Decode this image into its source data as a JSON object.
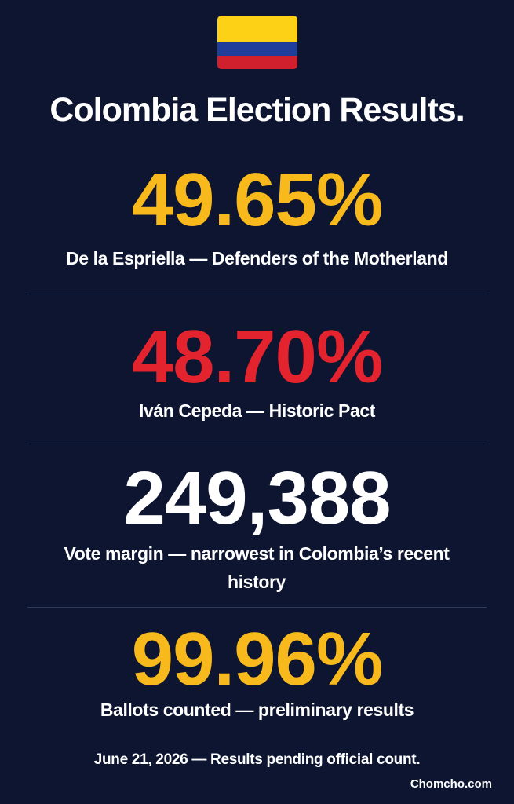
{
  "header": {
    "title": "Colombia Election Results."
  },
  "stats": [
    {
      "value": "49.65%",
      "label": "De la Espriella — Defenders of the Motherland"
    },
    {
      "value": "48.70%",
      "label": "Iván Cepeda — Historic Pact"
    },
    {
      "value": "249,388",
      "label": "Vote margin — narrowest in Colombia’s recent history"
    },
    {
      "value": "99.96%",
      "label": "Ballots counted — preliminary results"
    }
  ],
  "footer": {
    "note": "June 21, 2026 — Results pending official count.",
    "credit": "Chomcho.com"
  }
}
